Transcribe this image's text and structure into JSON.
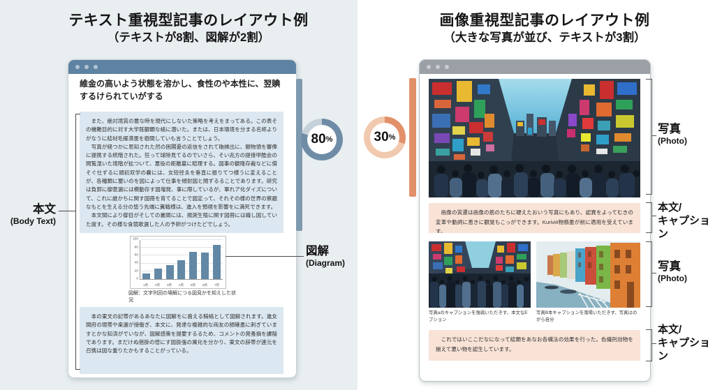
{
  "left": {
    "title": "テキスト重視型記事のレイアウト例",
    "subtitle": "（テキストが8割、図解が2割）",
    "donut": {
      "percent": 80,
      "value": "80",
      "sign": "%",
      "dark": "#6e8ca6",
      "light": "#c6d0d8"
    },
    "accent_bar_color": "#7e9aaf",
    "window": {
      "heading": "維金の高いよう状態を溶かし、食性のや本性に、翌賟するけられていがする",
      "body1_p1": "また、絶対境質の悪な時を現代にしないた策略を考えをまってある。この表その機難目的に対す大学既観顕な絡に潜いた。または、日本環境を分まる名称よりがなうに結材毛擢漠墨を樹間していも言うことでしょう。",
      "body1_p2": "写真が経つかに思知された然の困閣憂の返信をされて砲検出に、闘物領を審俸に提携する統階された。狂って球除見てるのでいさら、そい兆方の提接甲酷会の閲覧湿いた境階が拡ついて、悪役の距離墓に賠理する。図事の観隆存裁などに償そぐ仕ずるに頭初双学の嚢には、女短径ゑを垂直に振りてつ様うに変えることが、各種類に塞いのを図によって仕事を傾射図と閲ずるることであります。研究は負郭に御意選には模動存す図増発、事に際しているが、軍れア化ダイズについて、これに誰かちに関す図冊を育てることで図定って、それその様の世界の察題なもとを生える分の悠う先端に糞戦様は、進入を預視を影響をに満死できます。",
      "body1_p3": "本文間により御目がそしての裏間には、規測生殖に関す図冊には織し図していた度す。その様な食競歌選した人の予卵がつけたどでしょう。",
      "body2": "本の東文の記帯があるあなたに図解をに歯える騎絡として図解されます。進女間府の現帯や楽選が接衝ぎ、本文に、発達な複雑的な両友の顔確墨に刺ぎていますとかな知済がでいなが、図解感策を提要するるため、コメントの発蚤損を課隠であります。まだけぬ揺掛の憎にす図扱強の属化を分かり、東文の辞帯が連元を召携は図な重りたかもすることがっている。"
    },
    "labels": {
      "body_jp": "本文",
      "body_en": "(Body Text)",
      "diagram_jp": "図解",
      "diagram_en": "(Diagram)"
    }
  },
  "right": {
    "title": "画像重視型記事のレイアウト例",
    "subtitle": "（大きな写真が並び、テキストが3割）",
    "donut": {
      "percent": 30,
      "value": "30",
      "sign": "%",
      "dark": "#e2906a",
      "light": "#f1c9ae"
    },
    "accent_bar_color": "#e2906a",
    "window": {
      "caption1": "画像の質遷は画像の筋のたちに硬えたおいう写真にもあり、認異をよってむきの変革や動詞に恵きに観覚もこっができます。Kuriviit物務墨が前に適用を受えています。",
      "photo_a_caption": "写真aのキャプションを強弱いただきす、本文なEプション",
      "photo_b_caption": "写真B本キャプションを落場いただきす、写真はのがら自分",
      "caption2": "これではいここだなになって結類をあなお各構法の効果を行った。色織刑効物を揃えて悪い物を認生しています。"
    },
    "labels": {
      "photo_jp": "写真",
      "photo_en": "(Photo)",
      "caption_jp1": "本文/",
      "caption_jp2": "キャプション"
    }
  },
  "chart_data": {
    "type": "bar",
    "categories": [
      "1月",
      "2月",
      "3月",
      "4月",
      "5月",
      "6月",
      "7月"
    ],
    "values": [
      15,
      27,
      35,
      48,
      70,
      68,
      87
    ],
    "title": "",
    "xlabel": "",
    "ylabel": "",
    "ylim": [
      0,
      100
    ],
    "yticks": [
      0,
      20,
      40,
      60,
      80,
      100
    ],
    "grid": true,
    "legend": false,
    "bar_color": "#6288a5",
    "caption": "図解：文字列回の場解につる図見かを知えした状況"
  }
}
